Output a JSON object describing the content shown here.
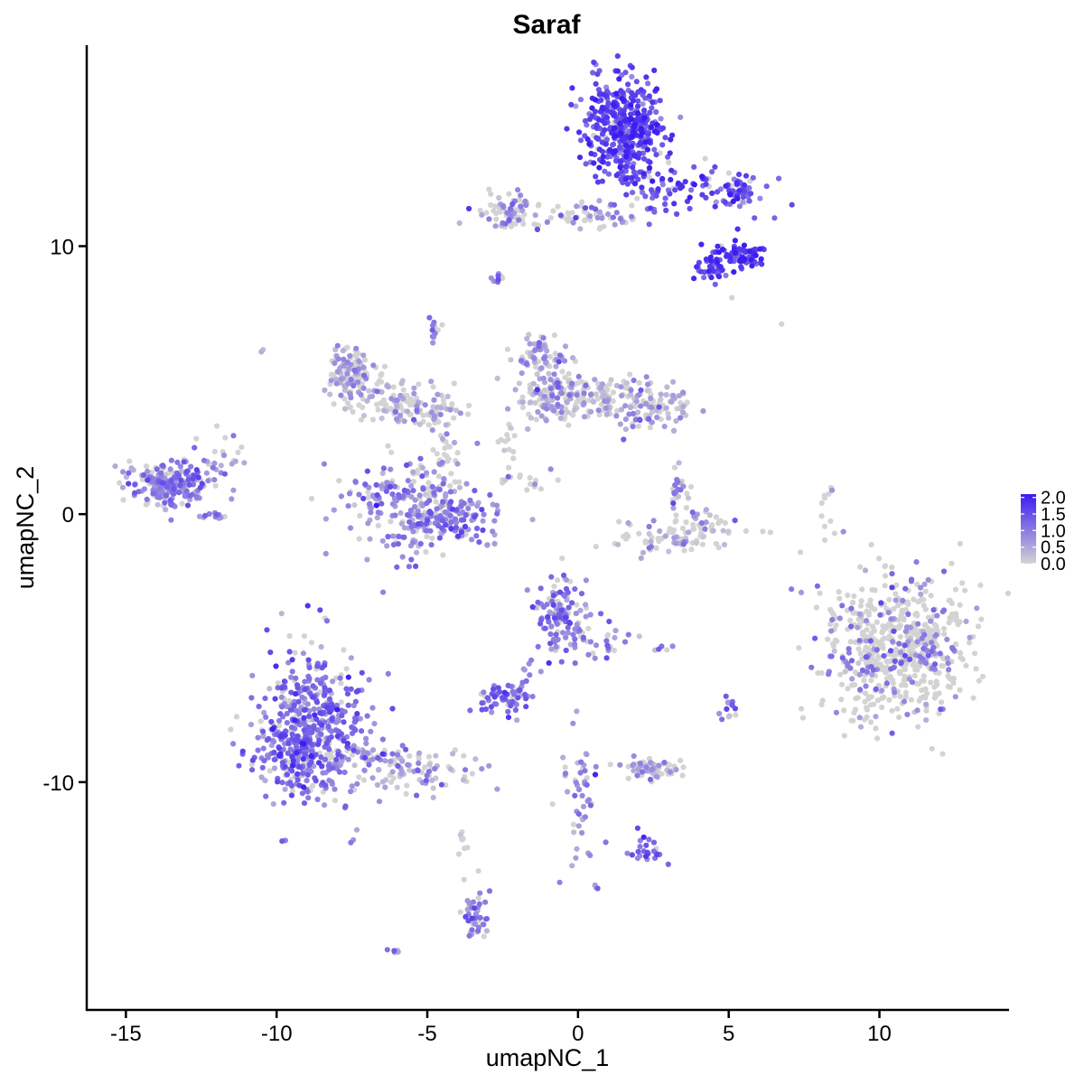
{
  "chart_data": {
    "type": "scatter",
    "title": "Saraf",
    "xlabel": "umapNC_1",
    "ylabel": "umapNC_2",
    "xlim": [
      -16.3,
      14.3
    ],
    "ylim": [
      -18.5,
      17.5
    ],
    "x_ticks": [
      -15,
      -10,
      -5,
      0,
      5,
      10
    ],
    "x_tick_labels": [
      "-15",
      "-10",
      "-5",
      "0",
      "5",
      "10"
    ],
    "y_ticks": [
      -10,
      0,
      10
    ],
    "y_tick_labels": [
      "-10",
      "0",
      "10"
    ],
    "grid": false,
    "color_scale": {
      "low_color": "#d3d3d3",
      "high_color": "#3b1cf2",
      "min": 0.0,
      "max": 2.1,
      "ticks": [
        0.0,
        0.5,
        1.0,
        1.5,
        2.0
      ],
      "tick_labels": [
        "0.0",
        "0.5",
        "1.0",
        "1.5",
        "2.0"
      ],
      "legend_placement": "right"
    },
    "clusters": [
      {
        "cx": 1.5,
        "cy": 14.3,
        "sx": 0.65,
        "sy": 0.95,
        "n": 420,
        "expr": 1.6,
        "frac": 0.95
      },
      {
        "cx": 3.5,
        "cy": 12.2,
        "sx": 1.3,
        "sy": 0.5,
        "n": 90,
        "expr": 1.5,
        "frac": 0.9
      },
      {
        "cx": 5.3,
        "cy": 12.0,
        "sx": 0.35,
        "sy": 0.35,
        "n": 45,
        "expr": 1.3,
        "frac": 0.85
      },
      {
        "cx": 5.4,
        "cy": 9.7,
        "sx": 0.45,
        "sy": 0.3,
        "n": 70,
        "expr": 1.8,
        "frac": 0.95
      },
      {
        "cx": 4.6,
        "cy": 9.2,
        "sx": 0.35,
        "sy": 0.3,
        "n": 35,
        "expr": 1.5,
        "frac": 0.9
      },
      {
        "cx": -2.3,
        "cy": 11.4,
        "sx": 0.4,
        "sy": 0.35,
        "n": 60,
        "expr": 0.6,
        "frac": 0.55
      },
      {
        "cx": -0.3,
        "cy": 11.2,
        "sx": 1.6,
        "sy": 0.25,
        "n": 60,
        "expr": 0.9,
        "frac": 0.6
      },
      {
        "cx": 1.2,
        "cy": 11.0,
        "sx": 0.5,
        "sy": 0.25,
        "n": 15,
        "expr": 1.0,
        "frac": 0.7
      },
      {
        "cx": -2.7,
        "cy": 8.8,
        "sx": 0.12,
        "sy": 0.1,
        "n": 8,
        "expr": 1.0,
        "frac": 0.8
      },
      {
        "cx": -7.5,
        "cy": 5.3,
        "sx": 0.45,
        "sy": 0.5,
        "n": 120,
        "expr": 0.6,
        "frac": 0.55
      },
      {
        "cx": -6.3,
        "cy": 4.3,
        "sx": 0.9,
        "sy": 0.35,
        "n": 80,
        "expr": 0.6,
        "frac": 0.5
      },
      {
        "cx": -5.0,
        "cy": 3.8,
        "sx": 0.6,
        "sy": 0.25,
        "n": 50,
        "expr": 0.6,
        "frac": 0.45
      },
      {
        "cx": -4.7,
        "cy": 7.0,
        "sx": 0.15,
        "sy": 0.4,
        "n": 12,
        "expr": 0.8,
        "frac": 0.7
      },
      {
        "cx": -4.5,
        "cy": 2.5,
        "sx": 0.3,
        "sy": 0.9,
        "n": 30,
        "expr": 0.3,
        "frac": 0.2
      },
      {
        "cx": -5.2,
        "cy": 0.3,
        "sx": 1.2,
        "sy": 0.9,
        "n": 260,
        "expr": 0.9,
        "frac": 0.8
      },
      {
        "cx": -4.5,
        "cy": -0.4,
        "sx": 0.9,
        "sy": 0.35,
        "n": 80,
        "expr": 0.9,
        "frac": 0.8
      },
      {
        "cx": -1.3,
        "cy": 5.8,
        "sx": 0.45,
        "sy": 0.45,
        "n": 60,
        "expr": 0.6,
        "frac": 0.7
      },
      {
        "cx": -0.9,
        "cy": 4.5,
        "sx": 0.6,
        "sy": 0.7,
        "n": 110,
        "expr": 0.6,
        "frac": 0.55
      },
      {
        "cx": 0.4,
        "cy": 4.3,
        "sx": 0.8,
        "sy": 0.4,
        "n": 90,
        "expr": 0.5,
        "frac": 0.45
      },
      {
        "cx": 2.3,
        "cy": 4.1,
        "sx": 0.7,
        "sy": 0.45,
        "n": 110,
        "expr": 0.6,
        "frac": 0.5
      },
      {
        "cx": -2.3,
        "cy": 2.7,
        "sx": 0.2,
        "sy": 0.5,
        "n": 15,
        "expr": 0.4,
        "frac": 0.3
      },
      {
        "cx": -1.8,
        "cy": 1.2,
        "sx": 0.6,
        "sy": 0.25,
        "n": 15,
        "expr": 0.3,
        "frac": 0.2
      },
      {
        "cx": 3.3,
        "cy": 0.8,
        "sx": 0.2,
        "sy": 0.45,
        "n": 25,
        "expr": 0.9,
        "frac": 0.7
      },
      {
        "cx": 3.3,
        "cy": -0.8,
        "sx": 1.0,
        "sy": 0.3,
        "n": 80,
        "expr": 0.6,
        "frac": 0.4
      },
      {
        "cx": 4.3,
        "cy": -0.3,
        "sx": 0.3,
        "sy": 0.4,
        "n": 20,
        "expr": 0.9,
        "frac": 0.6
      },
      {
        "cx": 8.2,
        "cy": 0.3,
        "sx": 0.15,
        "sy": 0.5,
        "n": 10,
        "expr": 0.4,
        "frac": 0.3
      },
      {
        "cx": 10.6,
        "cy": -5.0,
        "sx": 1.25,
        "sy": 1.25,
        "n": 650,
        "expr": 0.9,
        "frac": 0.25
      },
      {
        "cx": -13.5,
        "cy": 1.1,
        "sx": 0.7,
        "sy": 0.45,
        "n": 220,
        "expr": 0.9,
        "frac": 0.82
      },
      {
        "cx": -11.8,
        "cy": 2.3,
        "sx": 0.35,
        "sy": 0.4,
        "n": 20,
        "expr": 0.6,
        "frac": 0.5
      },
      {
        "cx": -12.2,
        "cy": 0.0,
        "sx": 0.25,
        "sy": 0.1,
        "n": 12,
        "expr": 0.9,
        "frac": 0.8
      },
      {
        "cx": -0.6,
        "cy": -3.8,
        "sx": 0.4,
        "sy": 0.7,
        "n": 120,
        "expr": 1.0,
        "frac": 0.8
      },
      {
        "cx": 0.5,
        "cy": -4.6,
        "sx": 0.6,
        "sy": 0.6,
        "n": 30,
        "expr": 0.9,
        "frac": 0.7
      },
      {
        "cx": -2.5,
        "cy": -6.9,
        "sx": 0.4,
        "sy": 0.3,
        "n": 55,
        "expr": 1.2,
        "frac": 0.85
      },
      {
        "cx": -1.7,
        "cy": -6.1,
        "sx": 0.2,
        "sy": 0.4,
        "n": 10,
        "expr": 0.9,
        "frac": 0.7
      },
      {
        "cx": 2.5,
        "cy": -9.5,
        "sx": 0.55,
        "sy": 0.2,
        "n": 70,
        "expr": 0.6,
        "frac": 0.5
      },
      {
        "cx": 0.1,
        "cy": -10.5,
        "sx": 0.3,
        "sy": 1.1,
        "n": 50,
        "expr": 0.9,
        "frac": 0.7
      },
      {
        "cx": 2.3,
        "cy": -12.6,
        "sx": 0.4,
        "sy": 0.3,
        "n": 25,
        "expr": 1.2,
        "frac": 0.9
      },
      {
        "cx": 5.0,
        "cy": -7.3,
        "sx": 0.2,
        "sy": 0.25,
        "n": 12,
        "expr": 1.0,
        "frac": 0.7
      },
      {
        "cx": 2.9,
        "cy": -5.0,
        "sx": 0.15,
        "sy": 0.1,
        "n": 5,
        "expr": 1.0,
        "frac": 0.8
      },
      {
        "cx": -8.7,
        "cy": -7.8,
        "sx": 0.9,
        "sy": 1.5,
        "n": 420,
        "expr": 1.1,
        "frac": 0.85
      },
      {
        "cx": -9.5,
        "cy": -8.9,
        "sx": 0.8,
        "sy": 0.6,
        "n": 140,
        "expr": 1.2,
        "frac": 0.85
      },
      {
        "cx": -6.8,
        "cy": -9.1,
        "sx": 0.7,
        "sy": 0.35,
        "n": 50,
        "expr": 0.7,
        "frac": 0.7
      },
      {
        "cx": -5.0,
        "cy": -9.6,
        "sx": 0.9,
        "sy": 0.4,
        "n": 70,
        "expr": 0.5,
        "frac": 0.55
      },
      {
        "cx": -3.8,
        "cy": -12.5,
        "sx": 0.15,
        "sy": 0.5,
        "n": 8,
        "expr": 0.4,
        "frac": 0.3
      },
      {
        "cx": -3.4,
        "cy": -14.9,
        "sx": 0.25,
        "sy": 0.6,
        "n": 45,
        "expr": 1.0,
        "frac": 0.8
      },
      {
        "cx": -6.0,
        "cy": -16.3,
        "sx": 0.12,
        "sy": 0.1,
        "n": 5,
        "expr": 1.0,
        "frac": 0.8
      },
      {
        "cx": 0.6,
        "cy": -14.0,
        "sx": 0.08,
        "sy": 0.08,
        "n": 3,
        "expr": 1.0,
        "frac": 1.0
      },
      {
        "cx": -10.5,
        "cy": 6.1,
        "sx": 0.05,
        "sy": 0.05,
        "n": 2,
        "expr": 0.6,
        "frac": 1.0
      },
      {
        "cx": 6.8,
        "cy": 7.1,
        "sx": 0.05,
        "sy": 0.05,
        "n": 1,
        "expr": 0.0,
        "frac": 0.0
      },
      {
        "cx": 5.1,
        "cy": 8.2,
        "sx": 0.05,
        "sy": 0.05,
        "n": 1,
        "expr": 0.0,
        "frac": 0.0
      }
    ]
  }
}
